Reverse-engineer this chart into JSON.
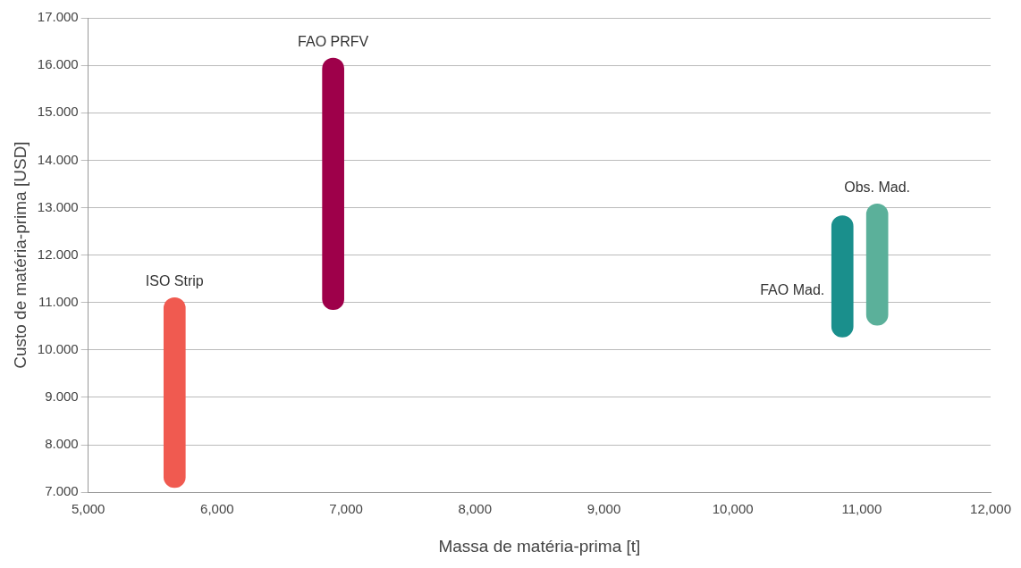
{
  "chart_data": {
    "type": "bar",
    "xlabel": "Massa de matéria-prima [t]",
    "ylabel": "Custo de matéria-prima [USD]",
    "grid": "y",
    "legend": false,
    "xlim": [
      5000,
      12000
    ],
    "xticks": [
      {
        "value": 5000,
        "label": "5,000"
      },
      {
        "value": 6000,
        "label": "6,000"
      },
      {
        "value": 7000,
        "label": "7,000"
      },
      {
        "value": 8000,
        "label": "8,000"
      },
      {
        "value": 9000,
        "label": "9,000"
      },
      {
        "value": 10000,
        "label": "10,000"
      },
      {
        "value": 11000,
        "label": "11,000"
      },
      {
        "value": 12000,
        "label": "12,000"
      }
    ],
    "ylim": [
      7,
      17
    ],
    "yticks": [
      {
        "value": 7,
        "label": "7.000"
      },
      {
        "value": 8,
        "label": "8.000"
      },
      {
        "value": 9,
        "label": "9.000"
      },
      {
        "value": 10,
        "label": "10.000"
      },
      {
        "value": 11,
        "label": "11.000"
      },
      {
        "value": 12,
        "label": "12.000"
      },
      {
        "value": 13,
        "label": "13.000"
      },
      {
        "value": 14,
        "label": "14.000"
      },
      {
        "value": 15,
        "label": "15.000"
      },
      {
        "value": 16,
        "label": "16.000"
      },
      {
        "value": 17,
        "label": "17.000"
      }
    ],
    "series": [
      {
        "name": "ISO Strip",
        "color": "#f05a50",
        "x": [
          5670
        ],
        "base": [
          7.1
        ],
        "values": [
          4.0
        ]
      },
      {
        "name": "FAO PRFV",
        "color": "#9e004a",
        "x": [
          6900
        ],
        "base": [
          10.85
        ],
        "values": [
          5.3
        ]
      },
      {
        "name": "FAO Mad.",
        "color": "#1a8f8c",
        "x": [
          10850
        ],
        "base": [
          10.27
        ],
        "values": [
          2.56
        ]
      },
      {
        "name": "Obs. Mad.",
        "color": "#5bb09a",
        "x": [
          11120
        ],
        "base": [
          10.52
        ],
        "values": [
          2.56
        ]
      }
    ]
  }
}
